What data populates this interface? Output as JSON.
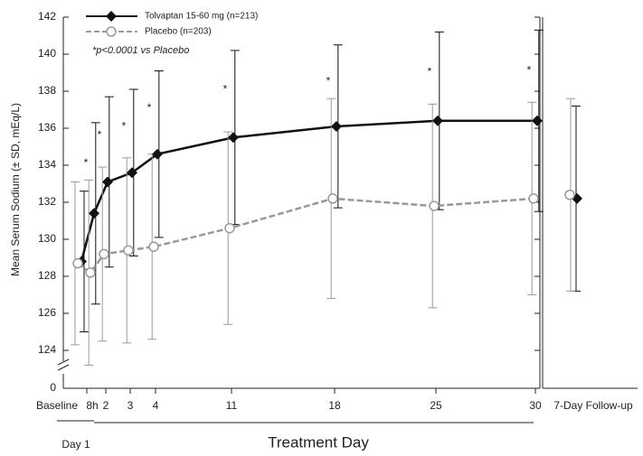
{
  "chart_data": {
    "type": "line",
    "y_axis_label": "Mean Serum Sodium (± SD, mEq/L)",
    "x_axis_label": "Treatment Day",
    "day1_label": "Day 1",
    "annotation": "*p<0.0001 vs Placebo",
    "categories": [
      "Baseline",
      "8h",
      "2",
      "3",
      "4",
      "11",
      "18",
      "25",
      "30"
    ],
    "followup_category": "7-Day Follow-up",
    "ylim": [
      124,
      142
    ],
    "yticks": [
      124,
      126,
      128,
      130,
      132,
      134,
      136,
      138,
      140,
      142
    ],
    "ybreak_tick": 0,
    "series": [
      {
        "name": "Tolvaptan 15-60 mg (n=213)",
        "color": "#111111",
        "marker": "diamond",
        "dashed": false,
        "values": [
          128.8,
          131.4,
          133.1,
          133.6,
          134.6,
          135.5,
          136.1,
          136.4,
          136.4
        ],
        "errors": [
          3.8,
          4.9,
          4.6,
          4.5,
          4.5,
          4.7,
          4.4,
          4.8,
          4.9
        ],
        "significance": [
          null,
          "*",
          "*",
          "*",
          "*",
          "*",
          "*",
          "*",
          "*"
        ],
        "followup_value": 132.2,
        "followup_error": 5.0
      },
      {
        "name": "Placebo (n=203)",
        "color": "#999999",
        "marker": "circle",
        "dashed": true,
        "values": [
          128.7,
          128.2,
          129.2,
          129.4,
          129.6,
          130.6,
          132.2,
          131.8,
          132.2
        ],
        "errors": [
          4.4,
          5.0,
          4.7,
          5.0,
          5.0,
          5.2,
          5.4,
          5.5,
          5.2
        ],
        "followup_value": 132.4,
        "followup_error": 5.2
      }
    ]
  }
}
